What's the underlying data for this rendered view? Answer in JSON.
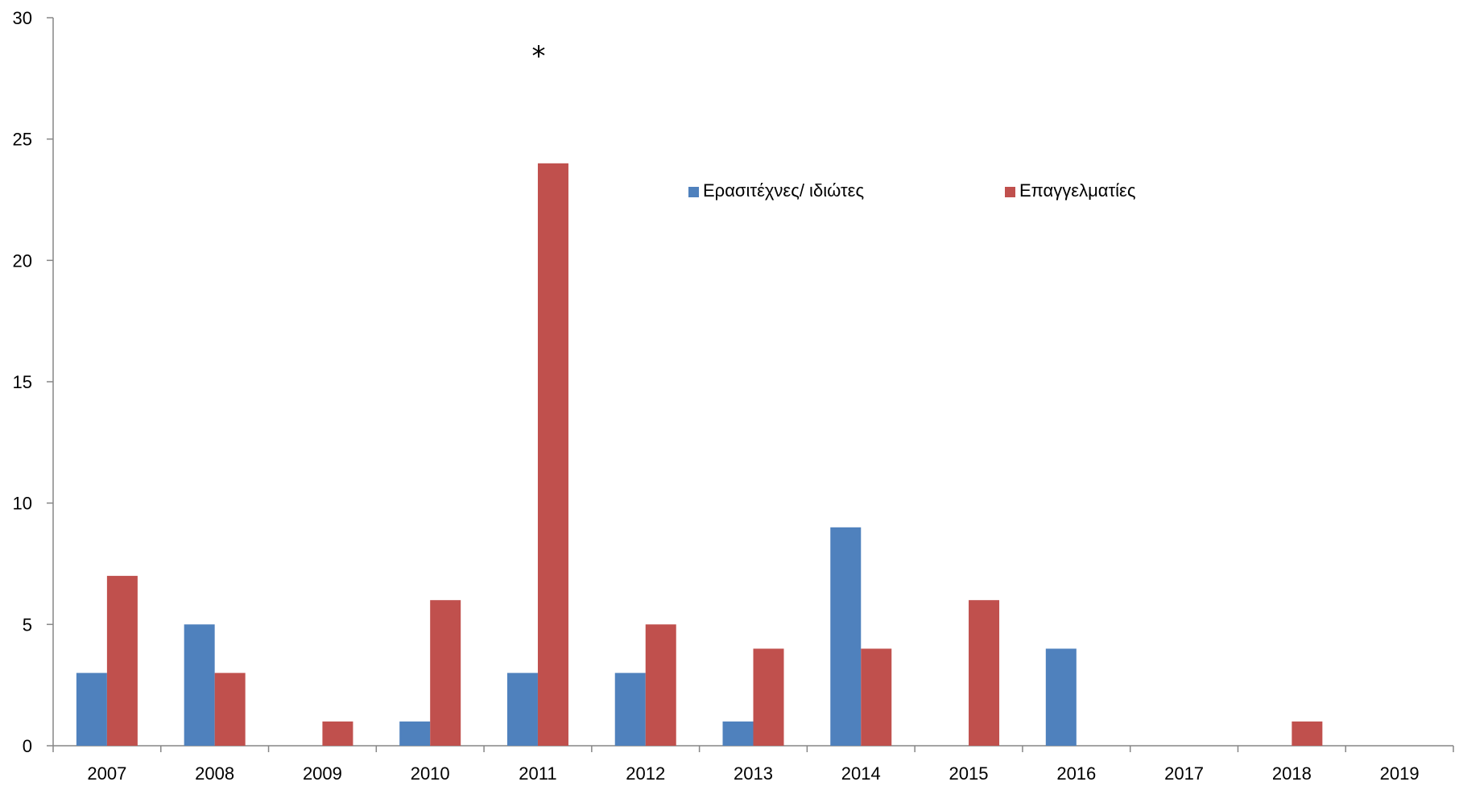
{
  "chart_data": {
    "type": "bar",
    "title": "",
    "xlabel": "",
    "ylabel": "",
    "categories": [
      "2007",
      "2008",
      "2009",
      "2010",
      "2011",
      "2012",
      "2013",
      "2014",
      "2015",
      "2016",
      "2017",
      "2018",
      "2019"
    ],
    "series": [
      {
        "name": "Ερασιτέχνες/ ιδιώτες",
        "color": "#4F81BD",
        "values": [
          3,
          5,
          0,
          1,
          3,
          3,
          1,
          9,
          0,
          4,
          0,
          0,
          0
        ]
      },
      {
        "name": "Επαγγελματίες",
        "color": "#C0504D",
        "values": [
          7,
          3,
          1,
          6,
          24,
          5,
          4,
          4,
          6,
          0,
          0,
          1,
          0
        ]
      }
    ],
    "ylim": [
      0,
      30
    ],
    "yticks": [
      "0",
      "5",
      "10",
      "15",
      "20",
      "25",
      "30"
    ],
    "grid": false,
    "legend": {
      "placement": "top-right"
    },
    "annotations": [
      {
        "text": "*",
        "category": "2011",
        "y": 28.7
      }
    ]
  }
}
